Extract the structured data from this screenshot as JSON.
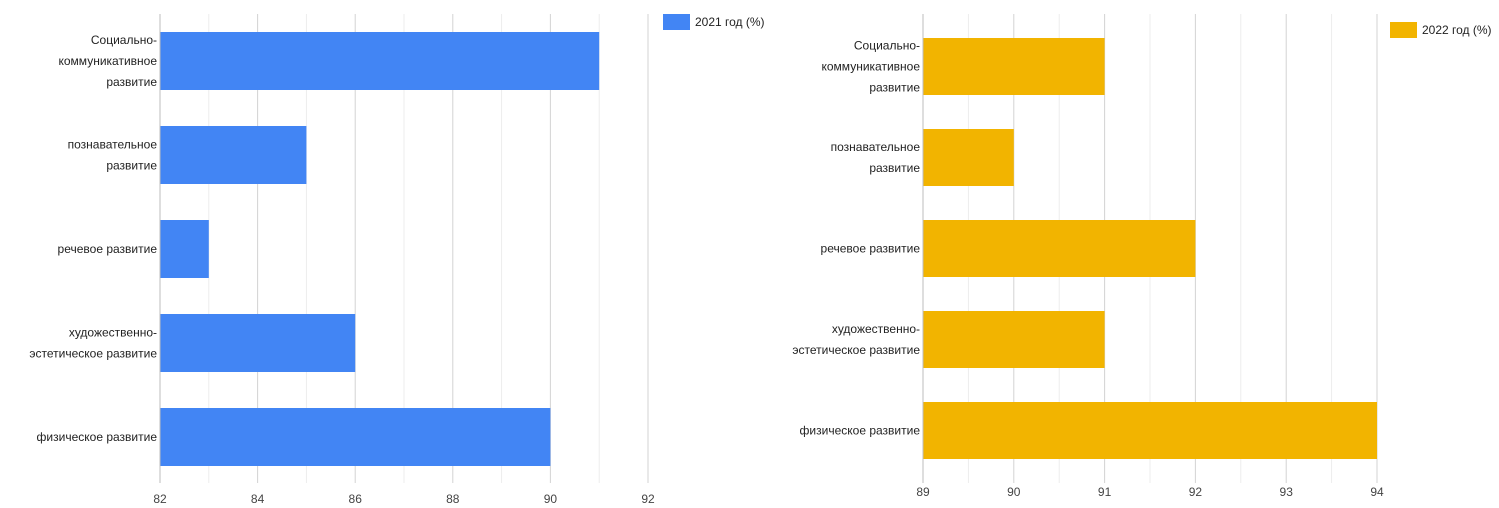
{
  "chart_data": [
    {
      "type": "bar",
      "orientation": "horizontal",
      "title": "",
      "xlabel": "",
      "ylabel": "",
      "categories": [
        [
          "Социально-",
          "коммуникативное",
          "развитие"
        ],
        [
          "познавательное",
          "развитие"
        ],
        [
          "речевое развитие"
        ],
        [
          "художественно-",
          "эстетическое развитие"
        ],
        [
          "физическое развитие"
        ]
      ],
      "series": [
        {
          "name": "2021 год (%)",
          "values": [
            91,
            85,
            83,
            86,
            90
          ],
          "color": "#4285f4"
        }
      ],
      "xlim": [
        82,
        92
      ],
      "xticks": [
        82,
        84,
        86,
        88,
        90,
        92
      ],
      "minor_ticks": [
        83,
        85,
        87,
        89,
        91
      ],
      "grid": true,
      "legend": "top-right"
    },
    {
      "type": "bar",
      "orientation": "horizontal",
      "title": "",
      "xlabel": "",
      "ylabel": "",
      "categories": [
        [
          "Социально-",
          "коммуникативное",
          "развитие"
        ],
        [
          "познавательное",
          "развитие"
        ],
        [
          "речевое развитие"
        ],
        [
          "художественно-",
          "эстетическое развитие"
        ],
        [
          "физическое развитие"
        ]
      ],
      "series": [
        {
          "name": "2022 год (%)",
          "values": [
            91,
            90,
            92,
            91,
            94
          ],
          "color": "#f2b400"
        }
      ],
      "xlim": [
        89,
        94
      ],
      "xticks": [
        89,
        90,
        91,
        92,
        93,
        94
      ],
      "minor_ticks": [
        89.5,
        90.5,
        91.5,
        92.5,
        93.5
      ],
      "grid": true,
      "legend": "top-right"
    }
  ]
}
